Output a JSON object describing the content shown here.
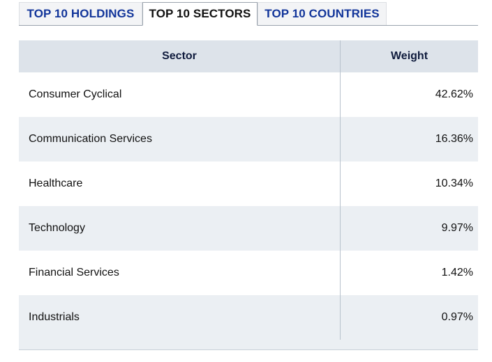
{
  "tabs": [
    {
      "label": "TOP 10 HOLDINGS",
      "active": false
    },
    {
      "label": "TOP 10 SECTORS",
      "active": true
    },
    {
      "label": "TOP 10 COUNTRIES",
      "active": false
    }
  ],
  "table": {
    "headers": {
      "sector": "Sector",
      "weight": "Weight"
    },
    "rows": [
      {
        "sector": "Consumer Cyclical",
        "weight": "42.62%"
      },
      {
        "sector": "Communication Services",
        "weight": "16.36%"
      },
      {
        "sector": "Healthcare",
        "weight": "10.34%"
      },
      {
        "sector": "Technology",
        "weight": "9.97%"
      },
      {
        "sector": "Financial Services",
        "weight": "1.42%"
      },
      {
        "sector": "Industrials",
        "weight": "0.97%"
      }
    ]
  },
  "colors": {
    "tab_link": "#12359a",
    "header_bg": "#dde3ea",
    "stripe_bg": "#ebeff3",
    "divider": "#b8c2cd"
  }
}
